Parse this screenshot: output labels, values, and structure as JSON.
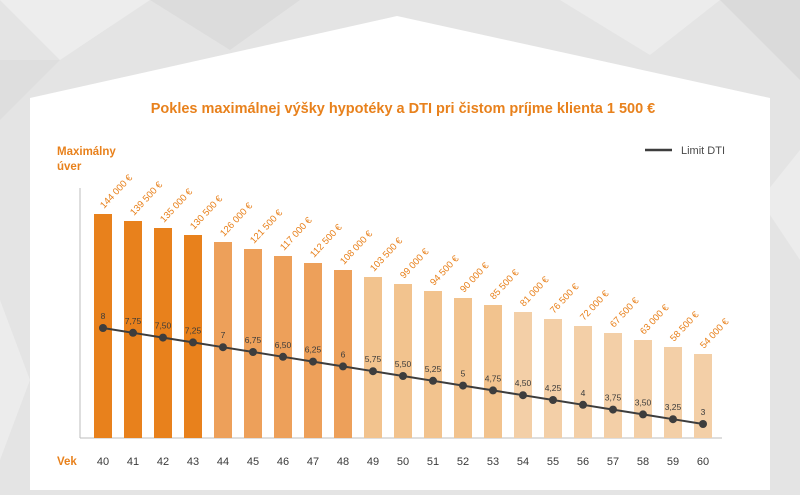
{
  "chart_data": {
    "type": "bar",
    "title": "Pokles maximálnej výšky hypotéky a DTI pri čistom príjme klienta 1 500 €",
    "ylabel_line1": "Maximálny",
    "ylabel_line2": "úver",
    "xlabel": "Vek",
    "legend": {
      "label": "Limit DTI",
      "position": "top-right"
    },
    "categories": [
      "40",
      "41",
      "42",
      "43",
      "44",
      "45",
      "46",
      "47",
      "48",
      "49",
      "50",
      "51",
      "52",
      "53",
      "54",
      "55",
      "56",
      "57",
      "58",
      "59",
      "60"
    ],
    "series": [
      {
        "values": [
          144000,
          139500,
          135000,
          130500,
          126000,
          121500,
          117000,
          112500,
          108000,
          103500,
          99000,
          94500,
          90000,
          85500,
          81000,
          76500,
          72000,
          67500,
          63000,
          58500,
          54000
        ],
        "labels": [
          "144 000 €",
          "139 500 €",
          "135 000 €",
          "130 500 €",
          "126 000 €",
          "121 500 €",
          "117 000 €",
          "112 500 €",
          "108 000 €",
          "103 500 €",
          "99 000 €",
          "94 500 €",
          "90 000 €",
          "85 500 €",
          "81 000 €",
          "76 500 €",
          "72 000 €",
          "67 500 €",
          "63 000 €",
          "58 500 €",
          "54 000 €"
        ]
      },
      {
        "name": "Limit DTI",
        "type": "line",
        "values": [
          8,
          7.75,
          7.5,
          7.25,
          7,
          6.75,
          6.5,
          6.25,
          6,
          5.75,
          5.5,
          5.25,
          5,
          4.75,
          4.5,
          4.25,
          4,
          3.75,
          3.5,
          3.25,
          3
        ],
        "labels": [
          "8",
          "7,75",
          "7,50",
          "7,25",
          "7",
          "6,75",
          "6,50",
          "6,25",
          "6",
          "5,75",
          "5,50",
          "5,25",
          "5",
          "4,75",
          "4,50",
          "4,25",
          "4",
          "3,75",
          "3,50",
          "3,25",
          "3"
        ]
      }
    ],
    "colors": [
      "#e8811c",
      "#e8811c",
      "#e8811c",
      "#e8811c",
      "#eda05a",
      "#eda05a",
      "#eda05a",
      "#eda05a",
      "#eda05a",
      "#f2c38e",
      "#f2c38e",
      "#f2c38e",
      "#f2c38e",
      "#f2c38e",
      "#f3cfa7",
      "#f3cfa7",
      "#f3cfa7",
      "#f3cfa7",
      "#f3cfa7",
      "#f3cfa7",
      "#f3cfa7"
    ],
    "line_color": "#3d3d3d",
    "grid": false
  }
}
